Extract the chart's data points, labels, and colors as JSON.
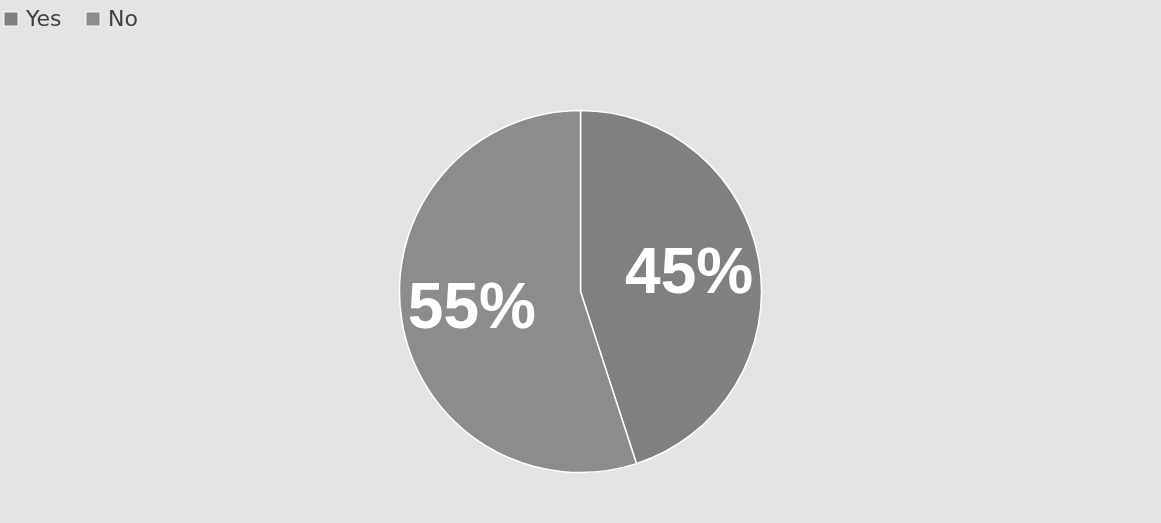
{
  "chart_data": {
    "type": "pie",
    "categories": [
      "Yes",
      "No"
    ],
    "values": [
      45,
      55
    ],
    "colors": [
      "#808080",
      "#8c8c8c"
    ],
    "value_labels": [
      "45%",
      "55%"
    ],
    "legend": "top"
  }
}
